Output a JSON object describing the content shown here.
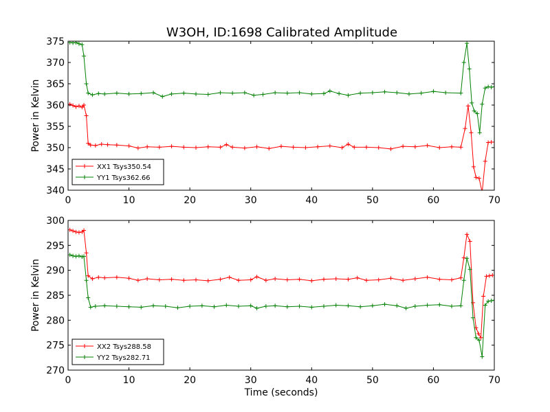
{
  "title": "W3OH, ID:1698 Calibrated Amplitude",
  "chart_data": [
    {
      "type": "line",
      "ylabel": "Power in Kelvin",
      "xlabel": "",
      "xlim": [
        0,
        70
      ],
      "ylim": [
        340,
        375
      ],
      "xticks": [
        0,
        10,
        20,
        30,
        40,
        50,
        60,
        70
      ],
      "yticks": [
        340,
        345,
        350,
        355,
        360,
        365,
        370,
        375
      ],
      "legend_position": "lower-left",
      "series": [
        {
          "name": "XX1 Tsys350.54",
          "color": "#ff0000",
          "marker": "plus",
          "points": [
            [
              0.3,
              360.2
            ],
            [
              0.8,
              359.9
            ],
            [
              1.3,
              359.6
            ],
            [
              1.8,
              359.8
            ],
            [
              2.3,
              359.5
            ],
            [
              2.6,
              360.0
            ],
            [
              3.0,
              357.5
            ],
            [
              3.3,
              351.0
            ],
            [
              3.7,
              350.6
            ],
            [
              4.5,
              350.5
            ],
            [
              5.5,
              350.8
            ],
            [
              6.5,
              350.7
            ],
            [
              8,
              350.6
            ],
            [
              10,
              350.4
            ],
            [
              11.5,
              349.9
            ],
            [
              13,
              350.2
            ],
            [
              15,
              350.1
            ],
            [
              17,
              350.3
            ],
            [
              19,
              350.1
            ],
            [
              21,
              350.0
            ],
            [
              23,
              350.2
            ],
            [
              25,
              350.1
            ],
            [
              26,
              350.7
            ],
            [
              27,
              350.1
            ],
            [
              29,
              349.9
            ],
            [
              31,
              350.2
            ],
            [
              33,
              349.8
            ],
            [
              35,
              350.3
            ],
            [
              37,
              350.1
            ],
            [
              39,
              350.0
            ],
            [
              41,
              350.2
            ],
            [
              43,
              350.4
            ],
            [
              45,
              350.0
            ],
            [
              46,
              350.8
            ],
            [
              47,
              350.1
            ],
            [
              49,
              350.1
            ],
            [
              51,
              350.0
            ],
            [
              53,
              349.7
            ],
            [
              55,
              350.3
            ],
            [
              57,
              350.2
            ],
            [
              59,
              350.5
            ],
            [
              61,
              350.0
            ],
            [
              63,
              350.2
            ],
            [
              64.5,
              350.1
            ],
            [
              65.2,
              354.5
            ],
            [
              65.7,
              359.8
            ],
            [
              66.2,
              353.5
            ],
            [
              66.6,
              345.5
            ],
            [
              67.0,
              343.0
            ],
            [
              67.5,
              342.8
            ],
            [
              68.0,
              339.5
            ],
            [
              68.5,
              346.8
            ],
            [
              69.0,
              351.2
            ],
            [
              69.5,
              351.3
            ],
            [
              70,
              351.3
            ]
          ]
        },
        {
          "name": "YY1 Tsys362.66",
          "color": "#008000",
          "marker": "plus",
          "points": [
            [
              0.3,
              374.7
            ],
            [
              0.8,
              374.6
            ],
            [
              1.3,
              374.7
            ],
            [
              1.8,
              374.4
            ],
            [
              2.3,
              374.2
            ],
            [
              2.6,
              371.5
            ],
            [
              3.0,
              365.0
            ],
            [
              3.3,
              362.8
            ],
            [
              4,
              362.4
            ],
            [
              5,
              362.7
            ],
            [
              6,
              362.6
            ],
            [
              8,
              362.8
            ],
            [
              10,
              362.6
            ],
            [
              12,
              362.7
            ],
            [
              14,
              362.9
            ],
            [
              15.5,
              362.0
            ],
            [
              17,
              362.6
            ],
            [
              19,
              362.8
            ],
            [
              21,
              362.6
            ],
            [
              23,
              362.5
            ],
            [
              25,
              362.9
            ],
            [
              27,
              362.8
            ],
            [
              29,
              362.9
            ],
            [
              30.5,
              362.3
            ],
            [
              32,
              362.5
            ],
            [
              34,
              362.9
            ],
            [
              36,
              362.8
            ],
            [
              38,
              362.9
            ],
            [
              40,
              362.6
            ],
            [
              42,
              362.7
            ],
            [
              43,
              363.3
            ],
            [
              44.5,
              362.7
            ],
            [
              46,
              362.3
            ],
            [
              48,
              362.8
            ],
            [
              50,
              362.9
            ],
            [
              52,
              363.1
            ],
            [
              54,
              362.9
            ],
            [
              56,
              362.6
            ],
            [
              58,
              362.8
            ],
            [
              60,
              363.2
            ],
            [
              62,
              362.9
            ],
            [
              64.5,
              362.8
            ],
            [
              65.0,
              370.0
            ],
            [
              65.5,
              374.5
            ],
            [
              65.9,
              368.5
            ],
            [
              66.3,
              360.5
            ],
            [
              66.7,
              358.6
            ],
            [
              67.2,
              358.0
            ],
            [
              67.6,
              353.5
            ],
            [
              68.0,
              360.2
            ],
            [
              68.5,
              364.0
            ],
            [
              69.0,
              364.3
            ],
            [
              69.5,
              364.2
            ],
            [
              70,
              364.3
            ]
          ]
        }
      ]
    },
    {
      "type": "line",
      "ylabel": "Power in Kelvin",
      "xlabel": "Time (seconds)",
      "xlim": [
        0,
        70
      ],
      "ylim": [
        270,
        300
      ],
      "xticks": [
        0,
        10,
        20,
        30,
        40,
        50,
        60,
        70
      ],
      "yticks": [
        270,
        275,
        280,
        285,
        290,
        295,
        300
      ],
      "legend_position": "lower-left",
      "series": [
        {
          "name": "XX2 Tsys288.58",
          "color": "#ff0000",
          "marker": "plus",
          "points": [
            [
              0.3,
              298.1
            ],
            [
              0.8,
              297.9
            ],
            [
              1.3,
              297.7
            ],
            [
              1.8,
              297.6
            ],
            [
              2.3,
              297.7
            ],
            [
              2.6,
              298.0
            ],
            [
              3.0,
              293.5
            ],
            [
              3.3,
              288.9
            ],
            [
              4,
              288.3
            ],
            [
              5,
              288.6
            ],
            [
              6,
              288.5
            ],
            [
              8,
              288.6
            ],
            [
              10,
              288.4
            ],
            [
              11.5,
              288.0
            ],
            [
              13,
              288.3
            ],
            [
              15,
              288.1
            ],
            [
              17,
              288.2
            ],
            [
              19,
              288.0
            ],
            [
              21,
              288.1
            ],
            [
              23,
              287.9
            ],
            [
              25,
              288.2
            ],
            [
              26.5,
              288.6
            ],
            [
              28,
              288.0
            ],
            [
              30,
              288.1
            ],
            [
              31,
              288.7
            ],
            [
              32.5,
              288.0
            ],
            [
              34,
              288.3
            ],
            [
              36,
              288.1
            ],
            [
              38,
              288.2
            ],
            [
              40,
              287.9
            ],
            [
              42,
              288.2
            ],
            [
              44,
              288.3
            ],
            [
              46,
              288.2
            ],
            [
              47.5,
              288.5
            ],
            [
              49,
              288.0
            ],
            [
              51,
              288.1
            ],
            [
              53,
              288.4
            ],
            [
              55,
              288.0
            ],
            [
              57,
              288.3
            ],
            [
              59,
              288.6
            ],
            [
              61,
              288.2
            ],
            [
              63,
              288.1
            ],
            [
              64.5,
              288.5
            ],
            [
              65.0,
              292.5
            ],
            [
              65.5,
              297.2
            ],
            [
              66.0,
              295.8
            ],
            [
              66.5,
              283.5
            ],
            [
              67.0,
              278.5
            ],
            [
              67.4,
              277.3
            ],
            [
              67.8,
              276.5
            ],
            [
              68.2,
              284.8
            ],
            [
              68.7,
              288.8
            ],
            [
              69.2,
              288.9
            ],
            [
              69.7,
              289.0
            ]
          ]
        },
        {
          "name": "YY2 Tsys282.71",
          "color": "#008000",
          "marker": "plus",
          "points": [
            [
              0.3,
              293.1
            ],
            [
              0.8,
              292.9
            ],
            [
              1.3,
              292.8
            ],
            [
              1.8,
              292.9
            ],
            [
              2.3,
              292.7
            ],
            [
              2.6,
              292.8
            ],
            [
              3.0,
              288.0
            ],
            [
              3.3,
              284.5
            ],
            [
              3.7,
              282.6
            ],
            [
              4.5,
              282.8
            ],
            [
              6,
              282.9
            ],
            [
              8,
              282.8
            ],
            [
              10,
              282.7
            ],
            [
              12,
              282.6
            ],
            [
              14,
              282.9
            ],
            [
              16,
              282.8
            ],
            [
              18,
              282.5
            ],
            [
              20,
              282.8
            ],
            [
              22,
              282.9
            ],
            [
              24,
              282.7
            ],
            [
              26,
              283.0
            ],
            [
              28,
              282.8
            ],
            [
              30,
              282.9
            ],
            [
              31,
              282.4
            ],
            [
              32.5,
              282.8
            ],
            [
              34,
              282.9
            ],
            [
              36,
              282.7
            ],
            [
              38,
              282.8
            ],
            [
              40,
              282.6
            ],
            [
              42,
              282.8
            ],
            [
              44,
              283.0
            ],
            [
              46,
              282.9
            ],
            [
              48,
              282.7
            ],
            [
              50,
              282.9
            ],
            [
              52,
              283.2
            ],
            [
              54,
              282.9
            ],
            [
              55.5,
              282.4
            ],
            [
              57,
              282.8
            ],
            [
              59,
              283.0
            ],
            [
              61,
              283.1
            ],
            [
              63,
              282.8
            ],
            [
              64.5,
              282.9
            ],
            [
              65.0,
              288.0
            ],
            [
              65.5,
              292.4
            ],
            [
              66.0,
              290.2
            ],
            [
              66.5,
              280.5
            ],
            [
              67.0,
              276.5
            ],
            [
              67.5,
              276.0
            ],
            [
              68.0,
              272.7
            ],
            [
              68.5,
              283.0
            ],
            [
              69.0,
              283.8
            ],
            [
              69.5,
              283.9
            ],
            [
              70,
              284.0
            ]
          ]
        }
      ]
    }
  ]
}
